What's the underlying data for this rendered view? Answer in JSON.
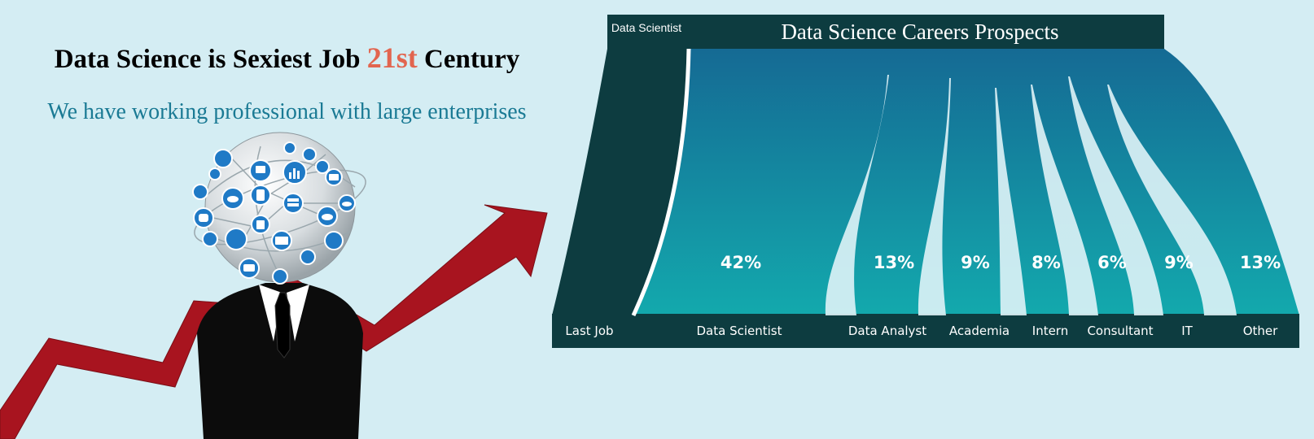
{
  "headline": {
    "before": "Data Science is Sexiest Job ",
    "accent": "21st",
    "after": " Century"
  },
  "subheadline": "We have working professional with large enterprises",
  "colors": {
    "accent": "#e2654f",
    "sub_text": "#1a7a94",
    "chart_dark": "#0d3c40",
    "chart_teal": "#13a9ad",
    "chart_blue": "#156a94",
    "arrow_red": "#a8141f"
  },
  "illustration": {
    "icons": [
      "globe-icon",
      "network-icon",
      "monitor-icon",
      "chart-icon",
      "database-icon",
      "cloud-icon",
      "mail-icon",
      "phone-icon",
      "tablet-icon",
      "laptop-icon",
      "chat-icon",
      "user-icon",
      "router-icon",
      "location-icon"
    ]
  },
  "chart_data": {
    "type": "sankey",
    "title": "Data Science Careers Prospects",
    "source_label": "Data Scientist",
    "source_axis_label": "Last Job",
    "targets": [
      {
        "label": "Data Scientist",
        "value": 42,
        "display": "42%"
      },
      {
        "label": "Data Analyst",
        "value": 13,
        "display": "13%"
      },
      {
        "label": "Academia",
        "value": 9,
        "display": "9%"
      },
      {
        "label": "Intern",
        "value": 8,
        "display": "8%"
      },
      {
        "label": "Consultant",
        "value": 6,
        "display": "6%"
      },
      {
        "label": "IT",
        "value": 9,
        "display": "9%"
      },
      {
        "label": "Other",
        "value": 13,
        "display": "13%"
      }
    ]
  }
}
